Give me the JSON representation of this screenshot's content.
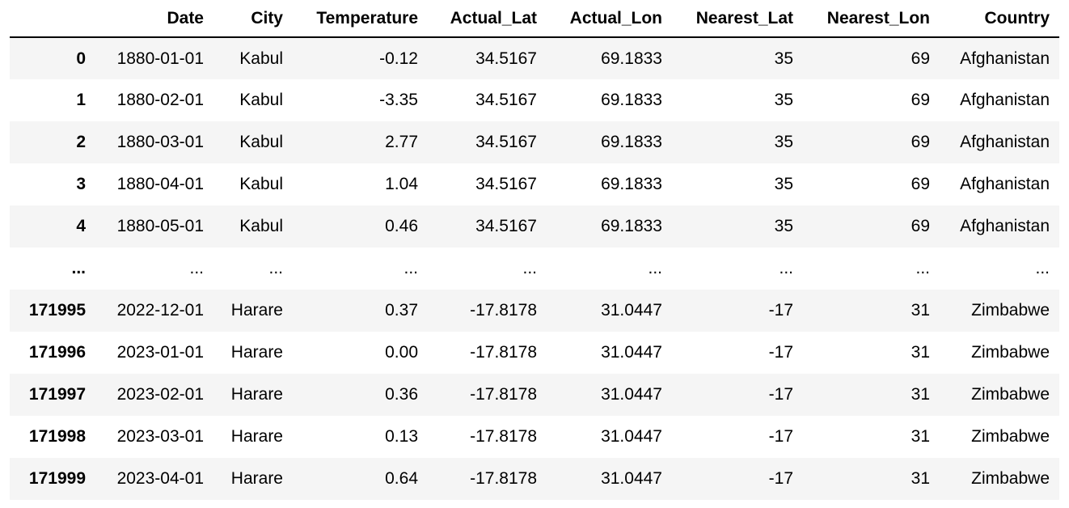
{
  "table": {
    "columns": [
      "",
      "Date",
      "City",
      "Temperature",
      "Actual_Lat",
      "Actual_Lon",
      "Nearest_Lat",
      "Nearest_Lon",
      "Country"
    ],
    "rows": [
      {
        "index": "0",
        "cells": [
          "1880-01-01",
          "Kabul",
          "-0.12",
          "34.5167",
          "69.1833",
          "35",
          "69",
          "Afghanistan"
        ]
      },
      {
        "index": "1",
        "cells": [
          "1880-02-01",
          "Kabul",
          "-3.35",
          "34.5167",
          "69.1833",
          "35",
          "69",
          "Afghanistan"
        ]
      },
      {
        "index": "2",
        "cells": [
          "1880-03-01",
          "Kabul",
          "2.77",
          "34.5167",
          "69.1833",
          "35",
          "69",
          "Afghanistan"
        ]
      },
      {
        "index": "3",
        "cells": [
          "1880-04-01",
          "Kabul",
          "1.04",
          "34.5167",
          "69.1833",
          "35",
          "69",
          "Afghanistan"
        ]
      },
      {
        "index": "4",
        "cells": [
          "1880-05-01",
          "Kabul",
          "0.46",
          "34.5167",
          "69.1833",
          "35",
          "69",
          "Afghanistan"
        ]
      },
      {
        "index": "...",
        "cells": [
          "...",
          "...",
          "...",
          "...",
          "...",
          "...",
          "...",
          "..."
        ]
      },
      {
        "index": "171995",
        "cells": [
          "2022-12-01",
          "Harare",
          "0.37",
          "-17.8178",
          "31.0447",
          "-17",
          "31",
          "Zimbabwe"
        ]
      },
      {
        "index": "171996",
        "cells": [
          "2023-01-01",
          "Harare",
          "0.00",
          "-17.8178",
          "31.0447",
          "-17",
          "31",
          "Zimbabwe"
        ]
      },
      {
        "index": "171997",
        "cells": [
          "2023-02-01",
          "Harare",
          "0.36",
          "-17.8178",
          "31.0447",
          "-17",
          "31",
          "Zimbabwe"
        ]
      },
      {
        "index": "171998",
        "cells": [
          "2023-03-01",
          "Harare",
          "0.13",
          "-17.8178",
          "31.0447",
          "-17",
          "31",
          "Zimbabwe"
        ]
      },
      {
        "index": "171999",
        "cells": [
          "2023-04-01",
          "Harare",
          "0.64",
          "-17.8178",
          "31.0447",
          "-17",
          "31",
          "Zimbabwe"
        ]
      }
    ]
  },
  "colors": {
    "striped_row": "#f5f5f5",
    "header_rule": "#000000",
    "text": "#000000"
  }
}
